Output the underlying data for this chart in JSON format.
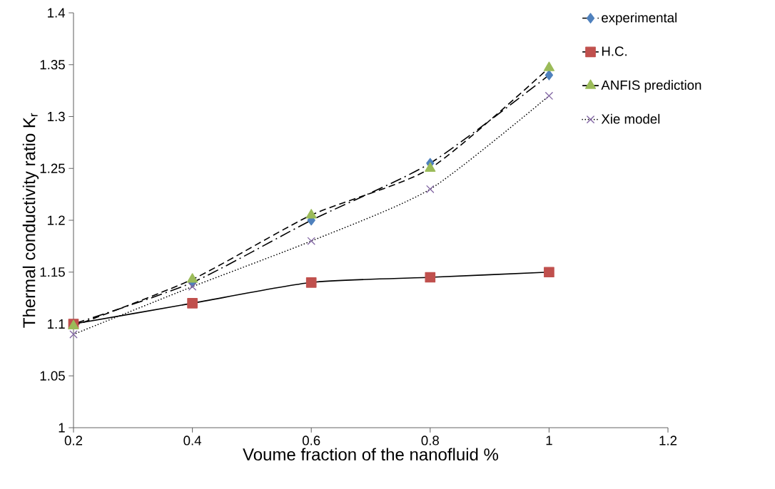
{
  "chart_data": {
    "type": "line",
    "xlabel": "Voume fraction of the nanofluid %",
    "ylabel": "Thermal conductivity ratio K$_{r}$",
    "x": [
      0.2,
      0.4,
      0.6,
      0.8,
      1.0
    ],
    "series": [
      {
        "name": "experimental",
        "color": "#4f81bd",
        "marker": "diamond",
        "line_style": "dashdot",
        "values": [
          1.1,
          1.14,
          1.2,
          1.255,
          1.34
        ]
      },
      {
        "name": "H.C.",
        "color": "#c0504d",
        "marker": "square",
        "line_style": "solid",
        "values": [
          1.1,
          1.12,
          1.14,
          1.145,
          1.15
        ]
      },
      {
        "name": "ANFIS prediction",
        "color": "#9bbb59",
        "marker": "triangle",
        "line_style": "dashed",
        "values": [
          1.098,
          1.143,
          1.205,
          1.25,
          1.347
        ]
      },
      {
        "name": "Xie model",
        "color": "#8064a2",
        "marker": "cross",
        "line_style": "dotted",
        "values": [
          1.09,
          1.136,
          1.18,
          1.23,
          1.32
        ]
      }
    ],
    "xlim": [
      0.2,
      1.2
    ],
    "xticks": [
      0.2,
      0.4,
      0.6,
      0.8,
      1,
      1.2
    ],
    "ylim": [
      1,
      1.4
    ],
    "yticks": [
      1,
      1.05,
      1.1,
      1.15,
      1.2,
      1.25,
      1.3,
      1.35,
      1.4
    ],
    "grid": false,
    "legend": "right"
  }
}
